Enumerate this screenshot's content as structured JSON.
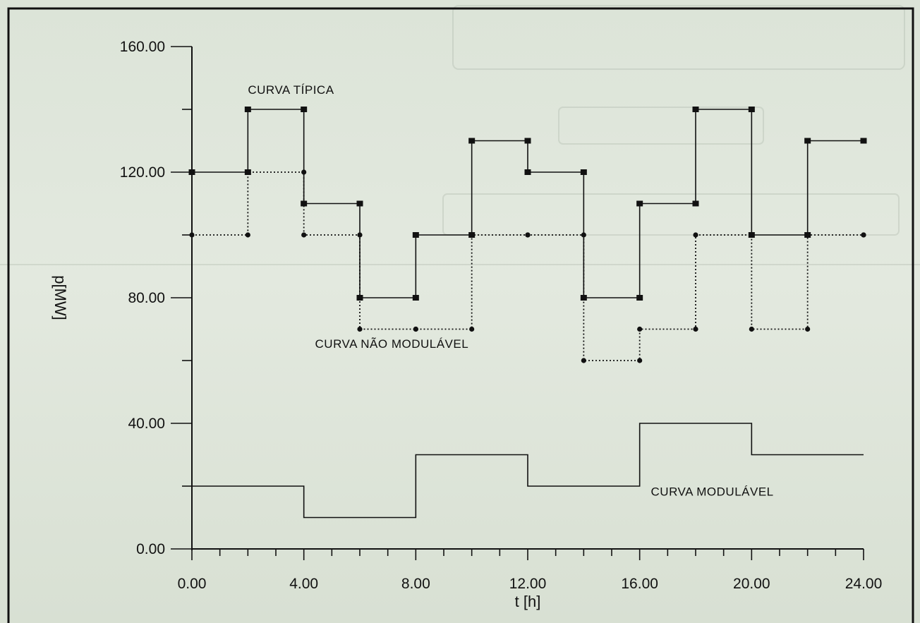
{
  "chart_data": {
    "type": "line",
    "title": "",
    "xlabel": "t [h]",
    "ylabel": "p[MW]",
    "xlim": [
      0,
      24
    ],
    "ylim": [
      0,
      160
    ],
    "x_ticks": [
      0,
      4,
      8,
      12,
      16,
      20,
      24
    ],
    "x_tick_labels": [
      "0.00",
      "4.00",
      "8.00",
      "12.00",
      "16.00",
      "20.00",
      "24.00"
    ],
    "y_ticks": [
      0,
      40,
      80,
      120,
      160
    ],
    "y_tick_labels": [
      "0.00",
      "40.00",
      "80.00",
      "120.00",
      "160.00"
    ],
    "grid": false,
    "series": [
      {
        "name": "CURVA TÍPICA",
        "style": "solid-step-with-square-markers",
        "color": "#111111",
        "x": [
          0,
          2,
          4,
          6,
          8,
          10,
          12,
          14,
          16,
          18,
          20,
          22,
          24
        ],
        "values": [
          120,
          140,
          110,
          80,
          100,
          130,
          120,
          80,
          110,
          140,
          100,
          130,
          130
        ]
      },
      {
        "name": "CURVA NÃO MODULÁVEL",
        "style": "dotted-step-with-round-markers",
        "color": "#111111",
        "x": [
          0,
          2,
          4,
          6,
          8,
          10,
          12,
          14,
          16,
          18,
          20,
          22,
          24
        ],
        "values": [
          100,
          120,
          100,
          70,
          70,
          100,
          100,
          60,
          70,
          100,
          70,
          100,
          100
        ]
      },
      {
        "name": "CURVA MODULÁVEL",
        "style": "solid-step",
        "color": "#111111",
        "x": [
          0,
          4,
          8,
          12,
          16,
          20,
          24
        ],
        "values": [
          20,
          10,
          30,
          20,
          40,
          30,
          30
        ]
      }
    ],
    "annotations": [
      {
        "text": "CURVA TÍPICA",
        "x": 2,
        "y": 145
      },
      {
        "text": "CURVA NÃO MODULÁVEL",
        "x": 4.4,
        "y": 64
      },
      {
        "text": "CURVA MODULÁVEL",
        "x": 16.4,
        "y": 17
      }
    ]
  }
}
